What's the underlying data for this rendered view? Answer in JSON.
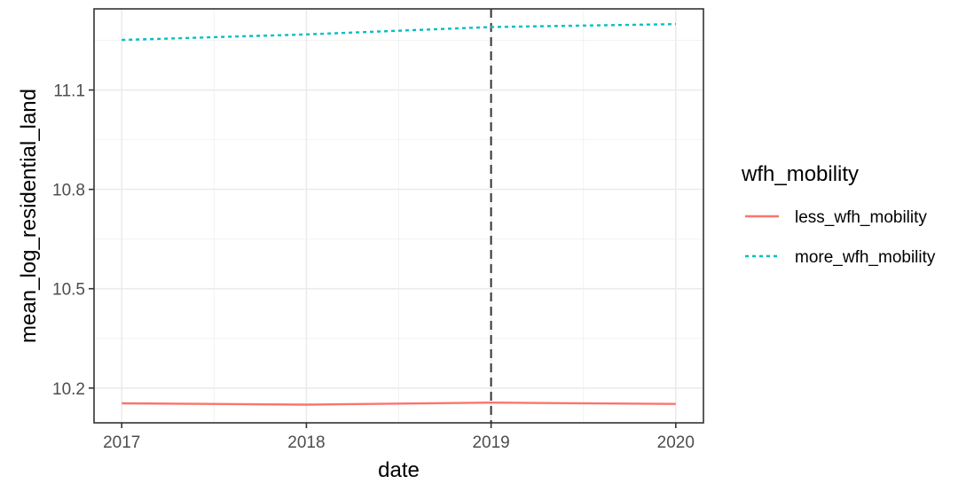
{
  "chart_data": {
    "type": "line",
    "title": "",
    "xlabel": "date",
    "ylabel": "mean_log_residential_land",
    "x": [
      "2017",
      "2018",
      "2019",
      "2020"
    ],
    "xlim": [
      2016.85,
      2020.15
    ],
    "ylim": [
      10.095,
      11.345
    ],
    "y_ticks": [
      "10.2",
      "10.5",
      "10.8",
      "11.1"
    ],
    "y_tick_values": [
      10.2,
      10.5,
      10.8,
      11.1
    ],
    "vline": {
      "x": 2019,
      "style": "dashed",
      "color": "#333333"
    },
    "grid": true,
    "legend": {
      "title": "wfh_mobility",
      "position": "right"
    },
    "series": [
      {
        "name": "less_wfh_mobility",
        "values": [
          10.154,
          10.15,
          10.156,
          10.152
        ],
        "color": "#F8766D",
        "style": "solid"
      },
      {
        "name": "more_wfh_mobility",
        "values": [
          11.251,
          11.268,
          11.29,
          11.299
        ],
        "color": "#00BFC4",
        "style": "dotted"
      }
    ]
  }
}
